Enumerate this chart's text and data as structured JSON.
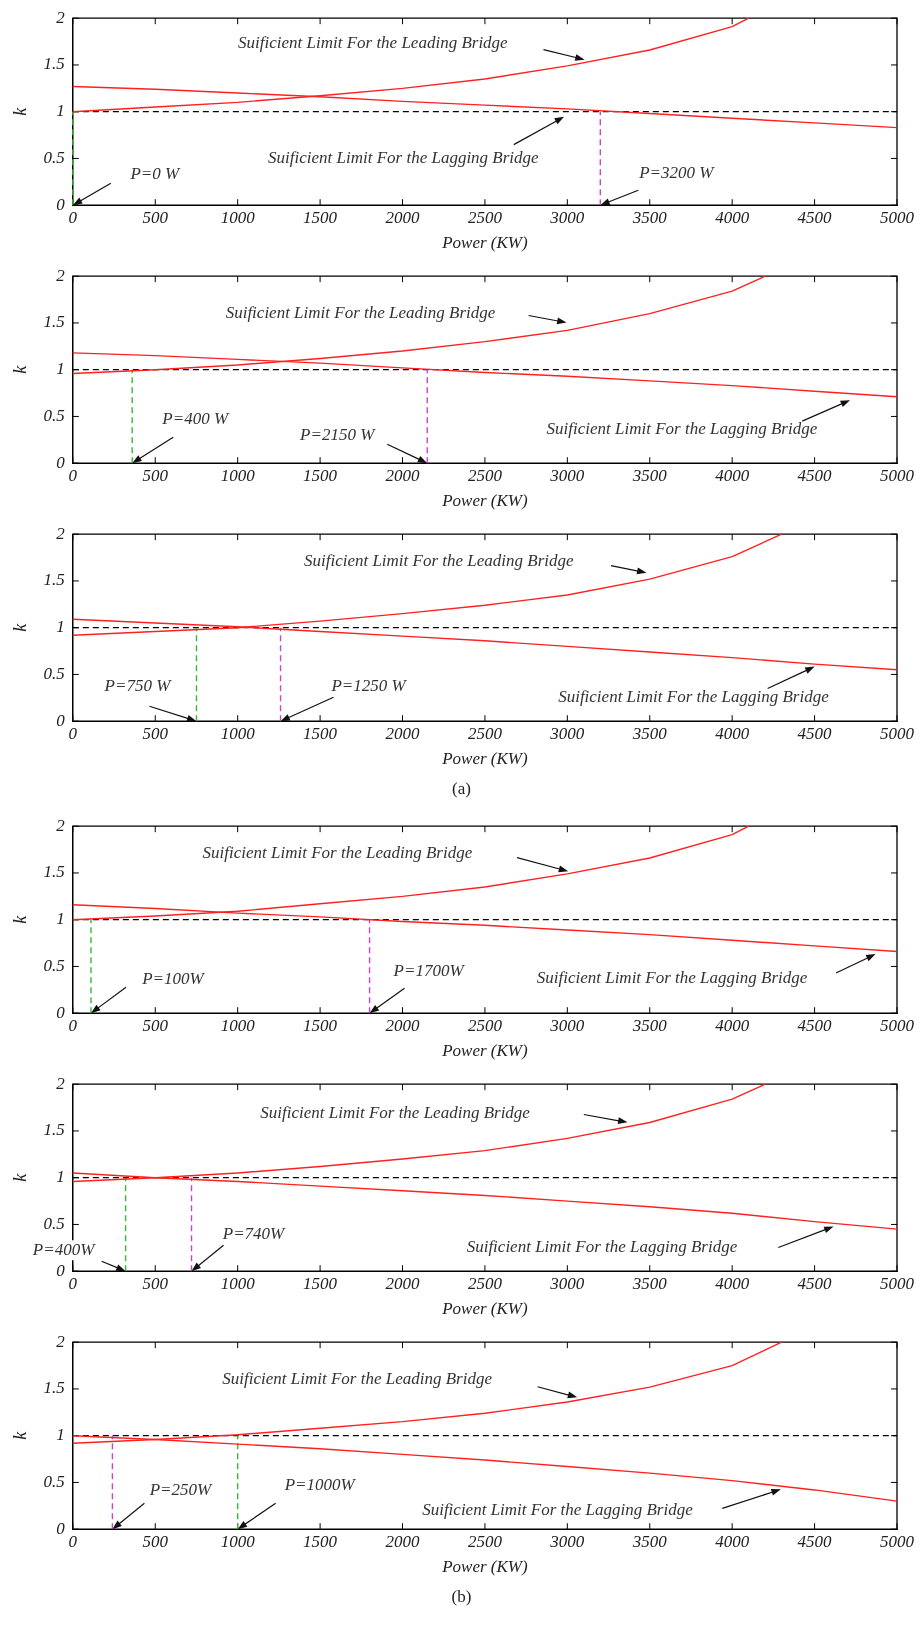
{
  "chart_data": [
    {
      "type": "line",
      "xlabel": "Power (KW)",
      "ylabel": "k",
      "xlim": [
        0,
        5000
      ],
      "xticks": [
        0,
        500,
        1000,
        1500,
        2000,
        2500,
        3000,
        3500,
        4000,
        4500,
        5000
      ],
      "ylim": [
        0,
        2
      ],
      "yticks": [
        0,
        0.5,
        1,
        1.5,
        2
      ],
      "grid": false,
      "legend": false,
      "marker": "none",
      "series": [
        {
          "color": "#ff2020",
          "x": [
            0,
            500,
            1000,
            1500,
            2000,
            2500,
            3000,
            3500,
            4000,
            4100
          ],
          "values": [
            1.0,
            1.05,
            1.1,
            1.17,
            1.25,
            1.35,
            1.49,
            1.66,
            1.91,
            2.0
          ]
        },
        {
          "color": "#ff2020",
          "x": [
            0,
            500,
            1000,
            1500,
            2000,
            2500,
            3000,
            3500,
            4000,
            4500,
            5000
          ],
          "values": [
            1.27,
            1.24,
            1.2,
            1.16,
            1.11,
            1.07,
            1.03,
            0.98,
            0.93,
            0.88,
            0.83
          ]
        },
        {
          "color": "#33bb33",
          "line_style": "dashed",
          "x": [
            0,
            0
          ],
          "values": [
            0,
            1
          ]
        },
        {
          "color": "#cc44cc",
          "line_style": "dashed",
          "x": [
            3200,
            3200
          ],
          "values": [
            0,
            1
          ]
        }
      ],
      "ref_lines": [
        {
          "axis": "y",
          "value": 1,
          "color": "#000000",
          "line_style": "dashed"
        }
      ],
      "annotations": [
        "Suificient Limit For the Leading Bridge",
        "Suificient Limit For the Lagging Bridge",
        {
          "text": "P=0 W",
          "x": 0,
          "y": 0
        },
        {
          "text": "P=3200 W",
          "x": 3200,
          "y": 0
        }
      ]
    },
    {
      "type": "line",
      "xlabel": "Power (KW)",
      "ylabel": "k",
      "xlim": [
        0,
        5000
      ],
      "xticks": [
        0,
        500,
        1000,
        1500,
        2000,
        2500,
        3000,
        3500,
        4000,
        4500,
        5000
      ],
      "ylim": [
        0,
        2
      ],
      "yticks": [
        0,
        0.5,
        1,
        1.5,
        2
      ],
      "grid": false,
      "legend": false,
      "marker": "none",
      "series": [
        {
          "color": "#ff2020",
          "x": [
            0,
            500,
            1000,
            1500,
            2000,
            2500,
            3000,
            3500,
            4000,
            4200
          ],
          "values": [
            0.96,
            1.0,
            1.05,
            1.12,
            1.2,
            1.3,
            1.42,
            1.6,
            1.84,
            2.0
          ]
        },
        {
          "color": "#ff2020",
          "x": [
            0,
            500,
            1000,
            1500,
            2000,
            2500,
            3000,
            3500,
            4000,
            4500,
            5000
          ],
          "values": [
            1.18,
            1.15,
            1.11,
            1.07,
            1.02,
            0.97,
            0.93,
            0.88,
            0.83,
            0.77,
            0.71
          ]
        },
        {
          "color": "#33bb33",
          "line_style": "dashed",
          "x": [
            360,
            360
          ],
          "values": [
            0,
            1
          ]
        },
        {
          "color": "#cc44cc",
          "line_style": "dashed",
          "x": [
            2150,
            2150
          ],
          "values": [
            0,
            1
          ]
        }
      ],
      "ref_lines": [
        {
          "axis": "y",
          "value": 1,
          "color": "#000000",
          "line_style": "dashed"
        }
      ],
      "annotations": [
        "Suificient Limit For the Leading Bridge",
        "Suificient Limit For the Lagging Bridge",
        {
          "text": "P=400 W",
          "x": 360,
          "y": 0
        },
        {
          "text": "P=2150 W",
          "x": 2150,
          "y": 0
        }
      ]
    },
    {
      "type": "line",
      "xlabel": "Power (KW)",
      "ylabel": "k",
      "xlim": [
        0,
        5000
      ],
      "xticks": [
        0,
        500,
        1000,
        1500,
        2000,
        2500,
        3000,
        3500,
        4000,
        4500,
        5000
      ],
      "ylim": [
        0,
        2
      ],
      "yticks": [
        0,
        0.5,
        1,
        1.5,
        2
      ],
      "grid": false,
      "legend": false,
      "marker": "none",
      "series": [
        {
          "color": "#ff2020",
          "x": [
            0,
            500,
            1000,
            1500,
            2000,
            2500,
            3000,
            3500,
            4000,
            4300
          ],
          "values": [
            0.92,
            0.96,
            1.0,
            1.07,
            1.15,
            1.24,
            1.35,
            1.52,
            1.76,
            2.0
          ]
        },
        {
          "color": "#ff2020",
          "x": [
            0,
            500,
            1000,
            1500,
            2000,
            2500,
            3000,
            3500,
            4000,
            4500,
            5000
          ],
          "values": [
            1.09,
            1.05,
            1.01,
            0.96,
            0.91,
            0.86,
            0.8,
            0.74,
            0.68,
            0.61,
            0.55
          ]
        },
        {
          "color": "#33bb33",
          "line_style": "dashed",
          "x": [
            750,
            750
          ],
          "values": [
            0,
            1
          ]
        },
        {
          "color": "#cc44cc",
          "line_style": "dashed",
          "x": [
            1260,
            1260
          ],
          "values": [
            0,
            1
          ]
        }
      ],
      "ref_lines": [
        {
          "axis": "y",
          "value": 1,
          "color": "#000000",
          "line_style": "dashed"
        }
      ],
      "annotations": [
        "Suificient Limit For the Leading Bridge",
        "Suificient Limit For the Lagging Bridge",
        {
          "text": "P=750 W",
          "x": 750,
          "y": 0
        },
        {
          "text": "P=1250 W",
          "x": 1260,
          "y": 0
        },
        "(a)"
      ]
    },
    {
      "type": "line",
      "xlabel": "Power (KW)",
      "ylabel": "k",
      "xlim": [
        0,
        5000
      ],
      "xticks": [
        0,
        500,
        1000,
        1500,
        2000,
        2500,
        3000,
        3500,
        4000,
        4500,
        5000
      ],
      "ylim": [
        0,
        2
      ],
      "yticks": [
        0,
        0.5,
        1,
        1.5,
        2
      ],
      "grid": false,
      "legend": false,
      "marker": "none",
      "series": [
        {
          "color": "#ff2020",
          "x": [
            0,
            500,
            1000,
            1500,
            2000,
            2500,
            3000,
            3500,
            4000,
            4100
          ],
          "values": [
            1.0,
            1.04,
            1.09,
            1.17,
            1.25,
            1.35,
            1.49,
            1.66,
            1.91,
            2.0
          ]
        },
        {
          "color": "#ff2020",
          "x": [
            0,
            500,
            1000,
            1500,
            2000,
            2500,
            3000,
            3500,
            4000,
            4500,
            5000
          ],
          "values": [
            1.16,
            1.12,
            1.07,
            1.03,
            0.98,
            0.94,
            0.89,
            0.84,
            0.78,
            0.72,
            0.66
          ]
        },
        {
          "color": "#33bb33",
          "line_style": "dashed",
          "x": [
            110,
            110
          ],
          "values": [
            0,
            1
          ]
        },
        {
          "color": "#cc44cc",
          "line_style": "dashed",
          "x": [
            1800,
            1800
          ],
          "values": [
            0,
            1
          ]
        }
      ],
      "ref_lines": [
        {
          "axis": "y",
          "value": 1,
          "color": "#000000",
          "line_style": "dashed"
        }
      ],
      "annotations": [
        "Suificient Limit For the Leading Bridge",
        "Suificient Limit For the Lagging Bridge",
        {
          "text": "P=100W",
          "x": 110,
          "y": 0
        },
        {
          "text": "P=1700W",
          "x": 1800,
          "y": 0
        }
      ]
    },
    {
      "type": "line",
      "xlabel": "Power (KW)",
      "ylabel": "k",
      "xlim": [
        0,
        5000
      ],
      "xticks": [
        0,
        500,
        1000,
        1500,
        2000,
        2500,
        3000,
        3500,
        4000,
        4500,
        5000
      ],
      "ylim": [
        0,
        2
      ],
      "yticks": [
        0,
        0.5,
        1,
        1.5,
        2
      ],
      "grid": false,
      "legend": false,
      "marker": "none",
      "series": [
        {
          "color": "#ff2020",
          "x": [
            0,
            500,
            1000,
            1500,
            2000,
            2500,
            3000,
            3500,
            4000,
            4200
          ],
          "values": [
            0.96,
            1.0,
            1.05,
            1.12,
            1.2,
            1.29,
            1.42,
            1.59,
            1.84,
            2.0
          ]
        },
        {
          "color": "#ff2020",
          "x": [
            0,
            500,
            1000,
            1500,
            2000,
            2500,
            3000,
            3500,
            4000,
            4500,
            5000
          ],
          "values": [
            1.05,
            1.0,
            0.96,
            0.91,
            0.86,
            0.81,
            0.75,
            0.69,
            0.62,
            0.53,
            0.45
          ]
        },
        {
          "color": "#33bb33",
          "line_style": "dashed",
          "x": [
            320,
            320
          ],
          "values": [
            0,
            1
          ]
        },
        {
          "color": "#cc44cc",
          "line_style": "dashed",
          "x": [
            720,
            720
          ],
          "values": [
            0,
            1
          ]
        }
      ],
      "ref_lines": [
        {
          "axis": "y",
          "value": 1,
          "color": "#000000",
          "line_style": "dashed"
        }
      ],
      "annotations": [
        "Suificient Limit For the Leading Bridge",
        "Suificient Limit For the Lagging Bridge",
        {
          "text": "P=400W",
          "x": 320,
          "y": 0
        },
        {
          "text": "P=740W",
          "x": 720,
          "y": 0
        }
      ]
    },
    {
      "type": "line",
      "xlabel": "Power (KW)",
      "ylabel": "k",
      "xlim": [
        0,
        5000
      ],
      "xticks": [
        0,
        500,
        1000,
        1500,
        2000,
        2500,
        3000,
        3500,
        4000,
        4500,
        5000
      ],
      "ylim": [
        0,
        2
      ],
      "yticks": [
        0,
        0.5,
        1,
        1.5,
        2
      ],
      "grid": false,
      "legend": false,
      "marker": "none",
      "series": [
        {
          "color": "#ff2020",
          "x": [
            0,
            500,
            1000,
            1500,
            2000,
            2500,
            3000,
            3500,
            4000,
            4300
          ],
          "values": [
            0.92,
            0.96,
            1.01,
            1.08,
            1.15,
            1.24,
            1.36,
            1.52,
            1.75,
            2.0
          ]
        },
        {
          "color": "#ff2020",
          "x": [
            0,
            500,
            1000,
            1500,
            2000,
            2500,
            3000,
            3500,
            4000,
            4500,
            5000
          ],
          "values": [
            1.0,
            0.96,
            0.91,
            0.86,
            0.8,
            0.74,
            0.67,
            0.6,
            0.52,
            0.42,
            0.3
          ]
        },
        {
          "color": "#cc44cc",
          "line_style": "dashed",
          "x": [
            240,
            240
          ],
          "values": [
            0,
            1
          ]
        },
        {
          "color": "#33bb33",
          "line_style": "dashed",
          "x": [
            1000,
            1000
          ],
          "values": [
            0,
            1
          ]
        }
      ],
      "ref_lines": [
        {
          "axis": "y",
          "value": 1,
          "color": "#000000",
          "line_style": "dashed"
        }
      ],
      "annotations": [
        "Suificient Limit For the Leading Bridge",
        "Suificient Limit For the Lagging Bridge",
        {
          "text": "P=250W",
          "x": 240,
          "y": 0
        },
        {
          "text": "P=1000W",
          "x": 1000,
          "y": 0
        },
        "(b)"
      ]
    }
  ]
}
